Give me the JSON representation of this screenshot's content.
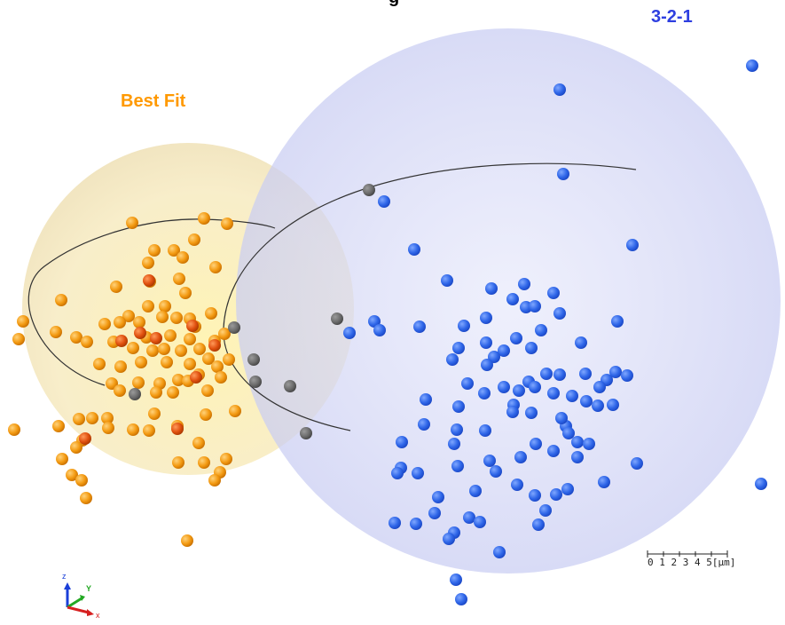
{
  "title": "g",
  "best_fit_label": "Best Fit",
  "method_label": "3-2-1",
  "scale_bar": {
    "ticks_text": "0 1 2 3 4 5[µm]"
  },
  "axes": {
    "z": "z",
    "y": "Y",
    "x": "x"
  },
  "colors": {
    "best_fit": "#ff9900",
    "method_321": "#2e3fe0",
    "orange_sphere_fill": "#f3e3a0",
    "blue_sphere_fill": "#c9ccf4",
    "orange_point": "#f39a12",
    "blue_point": "#2f66e8",
    "gray_point": "#6c6c6c"
  }
}
